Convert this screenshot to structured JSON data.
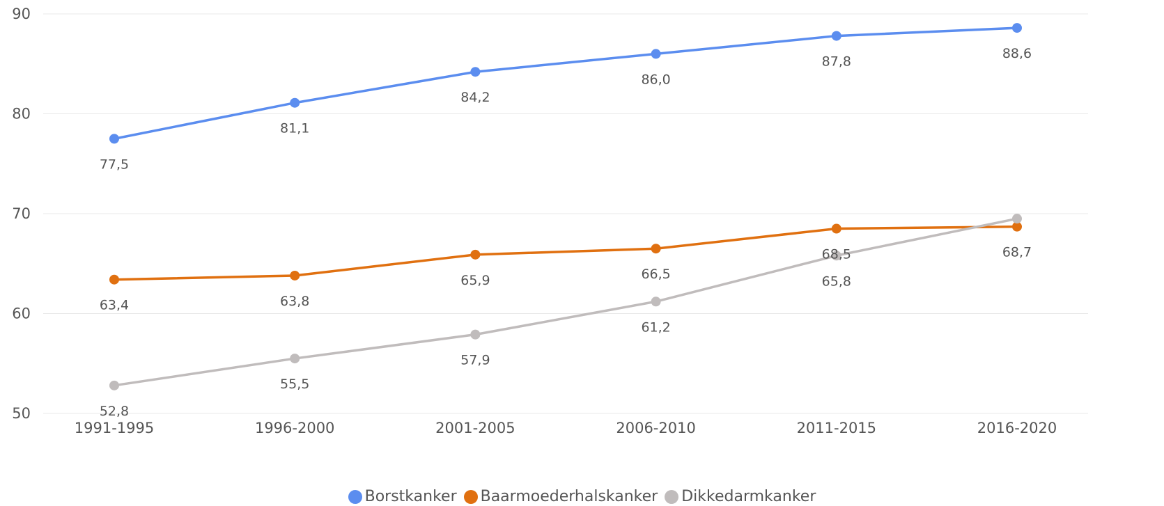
{
  "chart_data": {
    "type": "line",
    "categories": [
      "1991-1995",
      "1996-2000",
      "2001-2005",
      "2006-2010",
      "2011-2015",
      "2016-2020"
    ],
    "ylim": [
      50,
      90
    ],
    "yticks": [
      50,
      60,
      70,
      80,
      90
    ],
    "grid": true,
    "legend_position": "bottom-center",
    "series": [
      {
        "name": "Borstkanker",
        "color": "#5b8def",
        "values": [
          77.5,
          81.1,
          84.2,
          86.0,
          87.8,
          88.6
        ],
        "labels": [
          "77,5",
          "81,1",
          "84,2",
          "86,0",
          "87,8",
          "88,6"
        ]
      },
      {
        "name": "Baarmoederhalskanker",
        "color": "#e07010",
        "values": [
          63.4,
          63.8,
          65.9,
          66.5,
          68.5,
          68.7
        ],
        "labels": [
          "63,4",
          "63,8",
          "65,9",
          "66,5",
          "68,5",
          "68,7"
        ]
      },
      {
        "name": "Dikkedarmkanker",
        "color": "#c0bcbc",
        "values": [
          52.8,
          55.5,
          57.9,
          61.2,
          65.8,
          69.5
        ],
        "labels": [
          "52,8",
          "55,5",
          "57,9",
          "61,2",
          "65,8",
          ""
        ]
      }
    ]
  }
}
